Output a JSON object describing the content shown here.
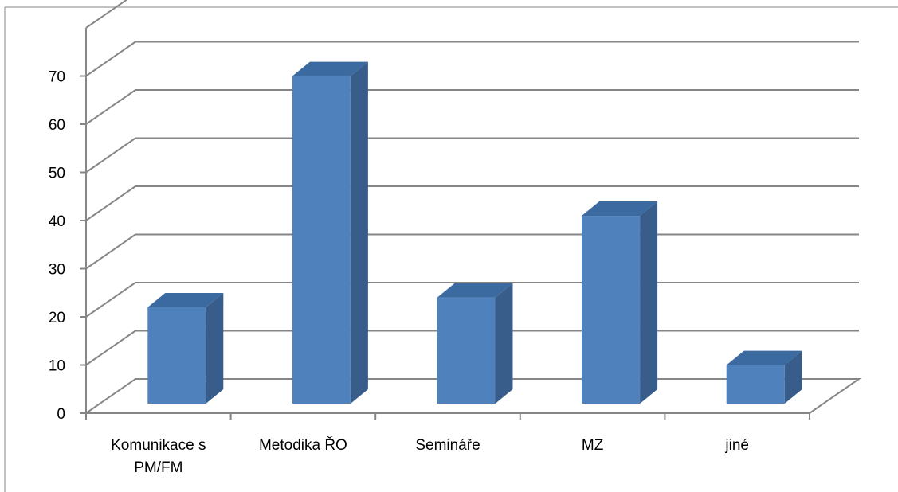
{
  "chart_data": {
    "type": "bar",
    "categories": [
      [
        "Komunikace s",
        "PM/FM"
      ],
      [
        "Metodika ŘO"
      ],
      [
        "Semináře"
      ],
      [
        "MZ"
      ],
      [
        "jiné"
      ]
    ],
    "values": [
      20,
      68,
      22,
      39,
      8
    ],
    "title": "",
    "xlabel": "",
    "ylabel": "",
    "ylim": [
      0,
      70
    ],
    "yticks": [
      0,
      10,
      20,
      30,
      40,
      50,
      60,
      70
    ],
    "grid": true,
    "legend": "none",
    "style": "3d-column"
  },
  "colors": {
    "bar_front": "#4f81bd",
    "bar_top": "#3a6aa0",
    "bar_side": "#385d8a",
    "gridline": "#868686",
    "frame": "#868686",
    "text": "#000000"
  }
}
